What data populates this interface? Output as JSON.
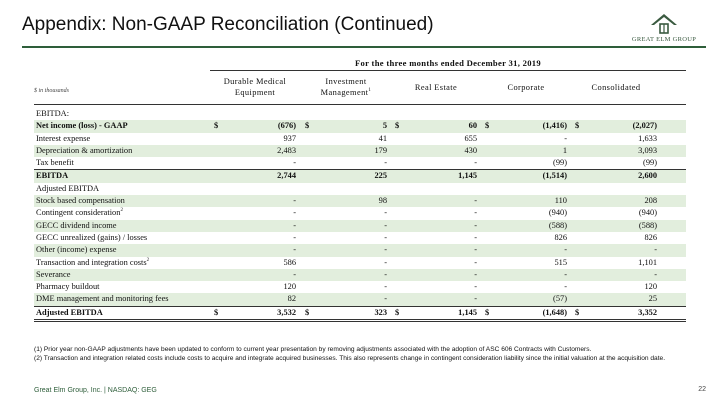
{
  "title": "Appendix: Non-GAAP Reconciliation (Continued)",
  "logo": {
    "text": "GREAT ELM  GROUP",
    "icon": "house-roof-icon",
    "color": "#3a5a40"
  },
  "table": {
    "period": "For the three months ended December 31, 2019",
    "units": "$ in thousands",
    "columns": [
      {
        "l1": "Durable Medical",
        "l2": "Equipment",
        "sup": ""
      },
      {
        "l1": "Investment",
        "l2": "Management",
        "sup": "1"
      },
      {
        "l1": "Real Estate",
        "l2": "",
        "sup": ""
      },
      {
        "l1": "Corporate",
        "l2": "",
        "sup": ""
      },
      {
        "l1": "Consolidated",
        "l2": "",
        "sup": ""
      }
    ],
    "rows": [
      {
        "label": "EBITDA:",
        "sup": "",
        "values": [
          "",
          "",
          "",
          "",
          ""
        ],
        "dollar": false,
        "bold": false,
        "shade": false
      },
      {
        "label": "Net income (loss) - GAAP",
        "sup": "",
        "values": [
          "(676)",
          "5",
          "60",
          "(1,416)",
          "(2,027)"
        ],
        "dollar": true,
        "bold": true,
        "shade": true
      },
      {
        "label": "Interest expense",
        "sup": "",
        "values": [
          "937",
          "41",
          "655",
          "-",
          "1,633"
        ],
        "dollar": false,
        "bold": false,
        "shade": false
      },
      {
        "label": "Depreciation & amortization",
        "sup": "",
        "values": [
          "2,483",
          "179",
          "430",
          "1",
          "3,093"
        ],
        "dollar": false,
        "bold": false,
        "shade": true
      },
      {
        "label": "Tax benefit",
        "sup": "",
        "values": [
          "-",
          "-",
          "-",
          "(99)",
          "(99)"
        ],
        "dollar": false,
        "bold": false,
        "shade": false
      },
      {
        "label": "EBITDA",
        "sup": "",
        "values": [
          "2,744",
          "225",
          "1,145",
          "(1,514)",
          "2,600"
        ],
        "dollar": false,
        "bold": true,
        "shade": true,
        "topline": true
      },
      {
        "label": "Adjusted EBITDA",
        "sup": "",
        "values": [
          "",
          "",
          "",
          "",
          ""
        ],
        "dollar": false,
        "bold": false,
        "shade": false
      },
      {
        "label": "Stock based compensation",
        "sup": "",
        "values": [
          "-",
          "98",
          "-",
          "110",
          "208"
        ],
        "dollar": false,
        "bold": false,
        "shade": true
      },
      {
        "label": "Contingent consideration",
        "sup": "2",
        "values": [
          "-",
          "-",
          "-",
          "(940)",
          "(940)"
        ],
        "dollar": false,
        "bold": false,
        "shade": false
      },
      {
        "label": "GECC dividend income",
        "sup": "",
        "values": [
          "-",
          "-",
          "-",
          "(588)",
          "(588)"
        ],
        "dollar": false,
        "bold": false,
        "shade": true
      },
      {
        "label": "GECC unrealized (gains) / losses",
        "sup": "",
        "values": [
          "-",
          "-",
          "-",
          "826",
          "826"
        ],
        "dollar": false,
        "bold": false,
        "shade": false
      },
      {
        "label": "Other (income) expense",
        "sup": "",
        "values": [
          "-",
          "-",
          "-",
          "-",
          "-"
        ],
        "dollar": false,
        "bold": false,
        "shade": true
      },
      {
        "label": "Transaction and integration costs",
        "sup": "2",
        "values": [
          "586",
          "-",
          "-",
          "515",
          "1,101"
        ],
        "dollar": false,
        "bold": false,
        "shade": false
      },
      {
        "label": "Severance",
        "sup": "",
        "values": [
          "-",
          "-",
          "-",
          "-",
          "-"
        ],
        "dollar": false,
        "bold": false,
        "shade": true
      },
      {
        "label": "Pharmacy buildout",
        "sup": "",
        "values": [
          "120",
          "-",
          "-",
          "-",
          "120"
        ],
        "dollar": false,
        "bold": false,
        "shade": false
      },
      {
        "label": "DME management and monitoring fees",
        "sup": "",
        "values": [
          "82",
          "-",
          "-",
          "(57)",
          "25"
        ],
        "dollar": false,
        "bold": false,
        "shade": true
      },
      {
        "label": "Adjusted EBITDA",
        "sup": "",
        "values": [
          "3,532",
          "323",
          "1,145",
          "(1,648)",
          "3,352"
        ],
        "dollar": true,
        "bold": true,
        "shade": false,
        "topline": true,
        "dbl": true
      }
    ]
  },
  "footnotes": [
    "(1) Prior year non-GAAP adjustments have been updated to conform to current year presentation by removing adjustments associated with the adoption of ASC 606 Contracts with Customers.",
    "(2) Transaction and integration related costs include costs to acquire and integrate acquired businesses.  This also represents change in contingent consideration liability since the initial valuation at the acquisition date."
  ],
  "footer": {
    "company": "Great Elm Group, Inc. | NASDAQ: GEG",
    "page": "22"
  },
  "colors": {
    "accent": "#2e5e3a",
    "shade": "#e2eedd"
  }
}
